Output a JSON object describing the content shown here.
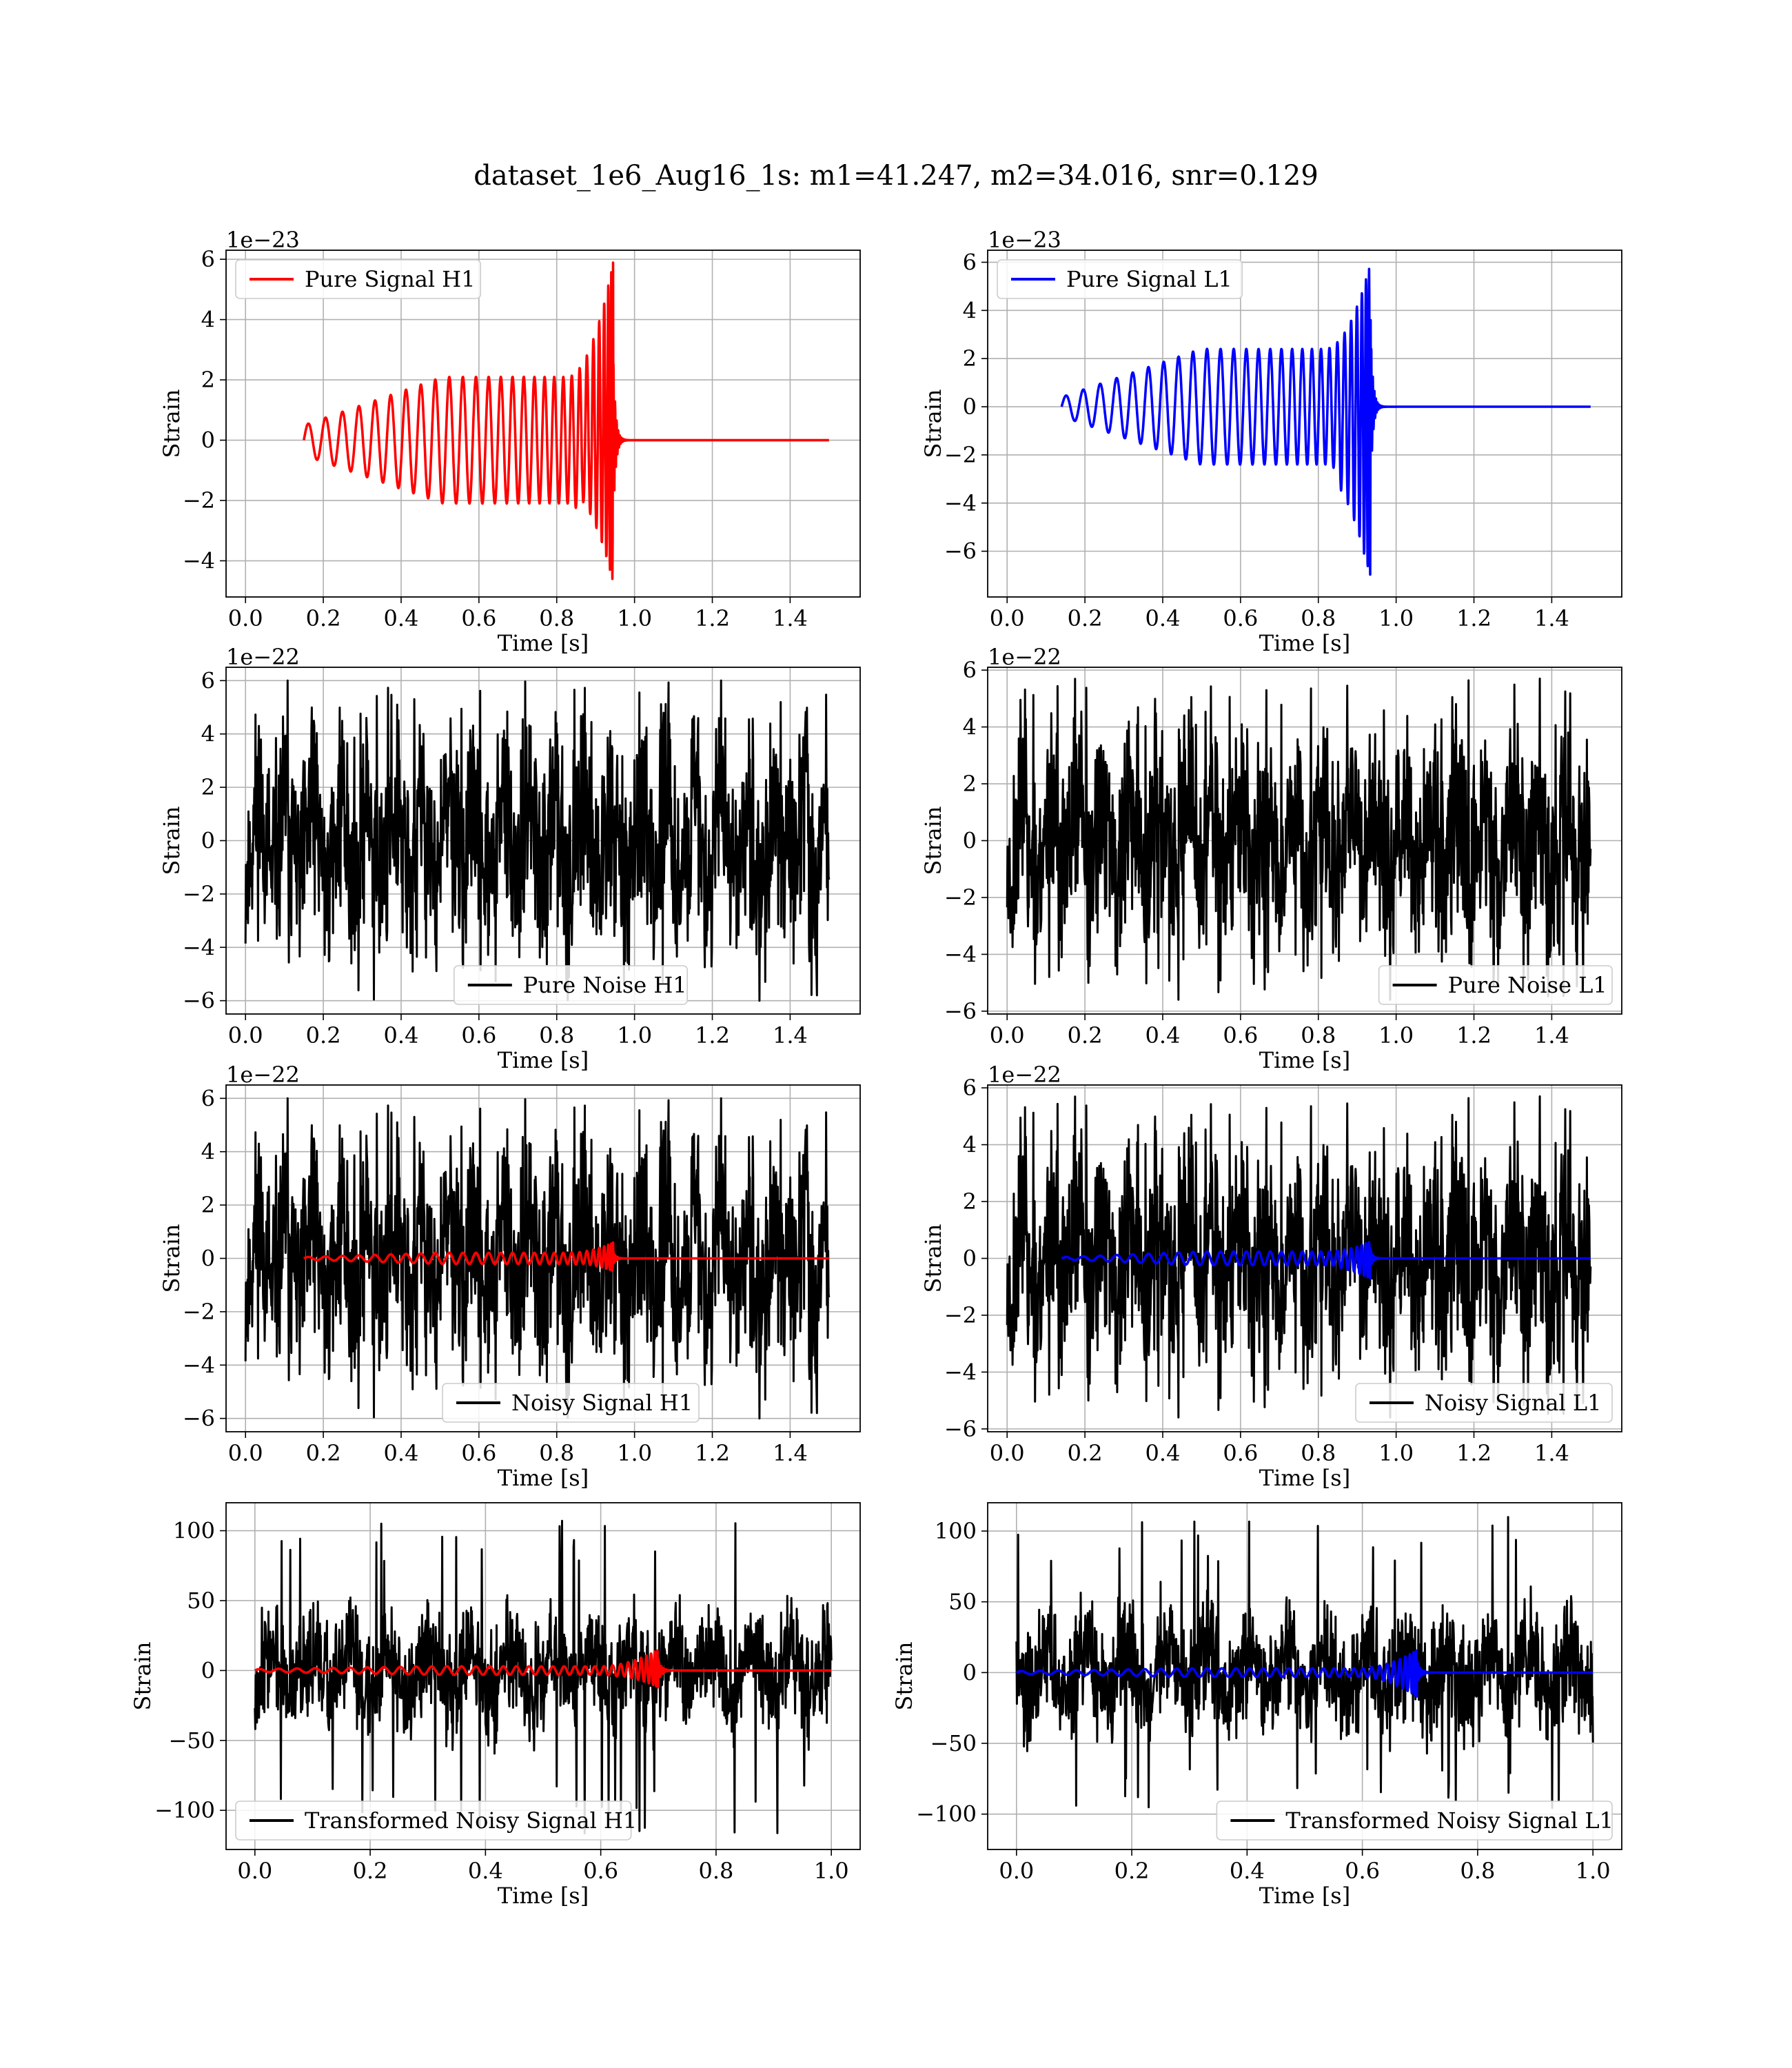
{
  "figure": {
    "title": "dataset_1e6_Aug16_1s: m1=41.247, m2=34.016, snr=0.129",
    "colors": {
      "signal_h1": "#ff0000",
      "signal_l1": "#0000ff",
      "noise": "#000000",
      "grid": "#b0b0b0"
    }
  },
  "chart_data": [
    {
      "type": "line",
      "title": "",
      "xlabel": "Time [s]",
      "ylabel": "Strain",
      "offset_text": "1e−23",
      "xlim": [
        -0.05,
        1.58
      ],
      "ylim": [
        -5.2,
        6.3
      ],
      "xticks": [
        0.0,
        0.2,
        0.4,
        0.6,
        0.8,
        1.0,
        1.2,
        1.4
      ],
      "xtick_labels": [
        "0.0",
        "0.2",
        "0.4",
        "0.6",
        "0.8",
        "1.0",
        "1.2",
        "1.4"
      ],
      "yticks": [
        -4,
        -2,
        0,
        2,
        4,
        6
      ],
      "ytick_labels": [
        "−4",
        "−2",
        "0",
        "2",
        "4",
        "6"
      ],
      "grid": true,
      "legend_position": "upper-left",
      "series": [
        {
          "name": "Pure Signal H1",
          "kind": "chirp",
          "color": "#ff0000",
          "t_start": 0.15,
          "t_merger": 0.945,
          "t_end": 1.5,
          "amp_start": 0.5,
          "amp_plateau": 2.1,
          "amp_peak": 5.9,
          "amp_min_peak": -4.7,
          "n_cycles": 25
        }
      ]
    },
    {
      "type": "line",
      "title": "",
      "xlabel": "Time [s]",
      "ylabel": "Strain",
      "offset_text": "1e−23",
      "xlim": [
        -0.05,
        1.58
      ],
      "ylim": [
        -7.9,
        6.5
      ],
      "xticks": [
        0.0,
        0.2,
        0.4,
        0.6,
        0.8,
        1.0,
        1.2,
        1.4
      ],
      "xtick_labels": [
        "0.0",
        "0.2",
        "0.4",
        "0.6",
        "0.8",
        "1.0",
        "1.2",
        "1.4"
      ],
      "yticks": [
        -6,
        -4,
        -2,
        0,
        2,
        4,
        6
      ],
      "ytick_labels": [
        "−6",
        "−4",
        "−2",
        "0",
        "2",
        "4",
        "6"
      ],
      "grid": true,
      "legend_position": "upper-left",
      "series": [
        {
          "name": "Pure Signal L1",
          "kind": "chirp",
          "color": "#0000ff",
          "t_start": 0.14,
          "t_merger": 0.935,
          "t_end": 1.5,
          "amp_start": 0.4,
          "amp_plateau": 2.4,
          "amp_peak": 6.0,
          "amp_min_peak": -7.3,
          "n_cycles": 25
        }
      ]
    },
    {
      "type": "line",
      "title": "",
      "xlabel": "Time [s]",
      "ylabel": "Strain",
      "offset_text": "1e−22",
      "xlim": [
        -0.05,
        1.58
      ],
      "ylim": [
        -6.5,
        6.5
      ],
      "xticks": [
        0.0,
        0.2,
        0.4,
        0.6,
        0.8,
        1.0,
        1.2,
        1.4
      ],
      "xtick_labels": [
        "0.0",
        "0.2",
        "0.4",
        "0.6",
        "0.8",
        "1.0",
        "1.2",
        "1.4"
      ],
      "yticks": [
        -6,
        -4,
        -2,
        0,
        2,
        4,
        6
      ],
      "ytick_labels": [
        "−6",
        "−4",
        "−2",
        "0",
        "2",
        "4",
        "6"
      ],
      "grid": true,
      "legend_position": "lower-center",
      "series": [
        {
          "name": "Pure Noise H1",
          "kind": "noise",
          "color": "#000000",
          "t_start": 0.0,
          "t_end": 1.5,
          "amp": 4.2,
          "max": 6.0,
          "min": -6.0,
          "seed": 11
        }
      ]
    },
    {
      "type": "line",
      "title": "",
      "xlabel": "Time [s]",
      "ylabel": "Strain",
      "offset_text": "1e−22",
      "xlim": [
        -0.05,
        1.58
      ],
      "ylim": [
        -6.1,
        6.1
      ],
      "xticks": [
        0.0,
        0.2,
        0.4,
        0.6,
        0.8,
        1.0,
        1.2,
        1.4
      ],
      "xtick_labels": [
        "0.0",
        "0.2",
        "0.4",
        "0.6",
        "0.8",
        "1.0",
        "1.2",
        "1.4"
      ],
      "yticks": [
        -6,
        -4,
        -2,
        0,
        2,
        4,
        6
      ],
      "ytick_labels": [
        "−6",
        "−4",
        "−2",
        "0",
        "2",
        "4",
        "6"
      ],
      "grid": true,
      "legend_position": "lower-right",
      "series": [
        {
          "name": "Pure Noise L1",
          "kind": "noise",
          "color": "#000000",
          "t_start": 0.0,
          "t_end": 1.5,
          "amp": 4.0,
          "max": 5.7,
          "min": -5.6,
          "seed": 23
        }
      ]
    },
    {
      "type": "line",
      "title": "",
      "xlabel": "Time [s]",
      "ylabel": "Strain",
      "offset_text": "1e−22",
      "xlim": [
        -0.05,
        1.58
      ],
      "ylim": [
        -6.5,
        6.5
      ],
      "xticks": [
        0.0,
        0.2,
        0.4,
        0.6,
        0.8,
        1.0,
        1.2,
        1.4
      ],
      "xtick_labels": [
        "0.0",
        "0.2",
        "0.4",
        "0.6",
        "0.8",
        "1.0",
        "1.2",
        "1.4"
      ],
      "yticks": [
        -6,
        -4,
        -2,
        0,
        2,
        4,
        6
      ],
      "ytick_labels": [
        "−6",
        "−4",
        "−2",
        "0",
        "2",
        "4",
        "6"
      ],
      "grid": true,
      "legend_position": "lower-center",
      "series": [
        {
          "name": "Noisy Signal H1",
          "kind": "noise",
          "color": "#000000",
          "t_start": 0.0,
          "t_end": 1.5,
          "amp": 4.2,
          "max": 6.0,
          "min": -6.0,
          "seed": 11
        },
        {
          "name": "",
          "kind": "chirp",
          "color": "#ff0000",
          "t_start": 0.15,
          "t_merger": 0.945,
          "t_end": 1.5,
          "amp_start": 0.05,
          "amp_plateau": 0.21,
          "amp_peak": 0.59,
          "amp_min_peak": -0.47,
          "n_cycles": 25
        }
      ]
    },
    {
      "type": "line",
      "title": "",
      "xlabel": "Time [s]",
      "ylabel": "Strain",
      "offset_text": "1e−22",
      "xlim": [
        -0.05,
        1.58
      ],
      "ylim": [
        -6.1,
        6.1
      ],
      "xticks": [
        0.0,
        0.2,
        0.4,
        0.6,
        0.8,
        1.0,
        1.2,
        1.4
      ],
      "xtick_labels": [
        "0.0",
        "0.2",
        "0.4",
        "0.6",
        "0.8",
        "1.0",
        "1.2",
        "1.4"
      ],
      "yticks": [
        -6,
        -4,
        -2,
        0,
        2,
        4,
        6
      ],
      "ytick_labels": [
        "−6",
        "−4",
        "−2",
        "0",
        "2",
        "4",
        "6"
      ],
      "grid": true,
      "legend_position": "lower-right",
      "series": [
        {
          "name": "Noisy Signal L1",
          "kind": "noise",
          "color": "#000000",
          "t_start": 0.0,
          "t_end": 1.5,
          "amp": 4.0,
          "max": 5.7,
          "min": -5.6,
          "seed": 23
        },
        {
          "name": "",
          "kind": "chirp",
          "color": "#0000ff",
          "t_start": 0.14,
          "t_merger": 0.935,
          "t_end": 1.5,
          "amp_start": 0.04,
          "amp_plateau": 0.24,
          "amp_peak": 0.6,
          "amp_min_peak": -0.73,
          "n_cycles": 25
        }
      ]
    },
    {
      "type": "line",
      "title": "",
      "xlabel": "Time [s]",
      "ylabel": "Strain",
      "offset_text": "",
      "xlim": [
        -0.05,
        1.05
      ],
      "ylim": [
        -128,
        120
      ],
      "xticks": [
        0.0,
        0.2,
        0.4,
        0.6,
        0.8,
        1.0
      ],
      "xtick_labels": [
        "0.0",
        "0.2",
        "0.4",
        "0.6",
        "0.8",
        "1.0"
      ],
      "yticks": [
        -100,
        -50,
        0,
        50,
        100
      ],
      "ytick_labels": [
        "−100",
        "−50",
        "0",
        "50",
        "100"
      ],
      "grid": true,
      "legend_position": "lower-left",
      "series": [
        {
          "name": "Transformed Noisy Signal H1",
          "kind": "noise",
          "color": "#000000",
          "t_start": 0.0,
          "t_end": 1.0,
          "amp": 42,
          "max": 110,
          "min": -117,
          "seed": 37
        },
        {
          "name": "",
          "kind": "chirp",
          "color": "#ff0000",
          "t_start": 0.0,
          "t_merger": 0.7,
          "t_end": 1.0,
          "amp_start": 1.0,
          "amp_plateau": 3.0,
          "amp_peak": 15,
          "amp_min_peak": -12,
          "n_cycles": 30
        }
      ]
    },
    {
      "type": "line",
      "title": "",
      "xlabel": "Time [s]",
      "ylabel": "Strain",
      "offset_text": "",
      "xlim": [
        -0.05,
        1.05
      ],
      "ylim": [
        -125,
        120
      ],
      "xticks": [
        0.0,
        0.2,
        0.4,
        0.6,
        0.8,
        1.0
      ],
      "xtick_labels": [
        "0.0",
        "0.2",
        "0.4",
        "0.6",
        "0.8",
        "1.0"
      ],
      "yticks": [
        -100,
        -50,
        0,
        50,
        100
      ],
      "ytick_labels": [
        "−100",
        "−50",
        "0",
        "50",
        "100"
      ],
      "grid": true,
      "legend_position": "lower-right",
      "series": [
        {
          "name": "Transformed Noisy Signal L1",
          "kind": "noise",
          "color": "#000000",
          "t_start": 0.0,
          "t_end": 1.0,
          "amp": 42,
          "max": 110,
          "min": -97,
          "seed": 41
        },
        {
          "name": "",
          "kind": "chirp",
          "color": "#0000ff",
          "t_start": 0.0,
          "t_merger": 0.695,
          "t_end": 1.0,
          "amp_start": 1.0,
          "amp_plateau": 3.0,
          "amp_peak": 16,
          "amp_min_peak": -17,
          "n_cycles": 30
        }
      ]
    }
  ]
}
